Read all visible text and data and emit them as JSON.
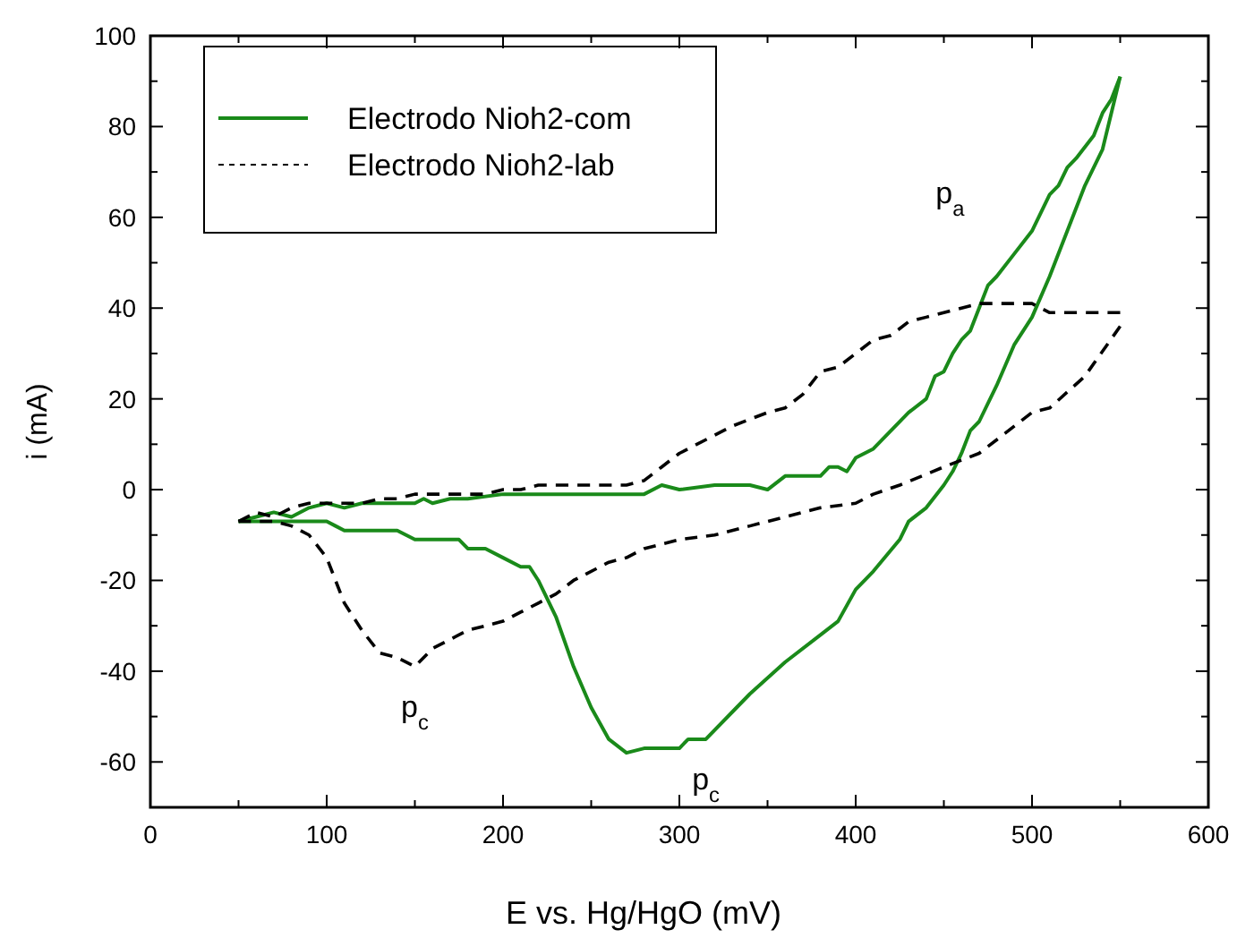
{
  "chart_data": {
    "type": "line",
    "xlabel": "E vs. Hg/HgO (mV)",
    "ylabel": "i (mA)",
    "xlim": [
      0,
      600
    ],
    "xticks": [
      0,
      100,
      200,
      300,
      400,
      500,
      600
    ],
    "ylim": [
      -70,
      100
    ],
    "yticks": [
      -60,
      -40,
      -20,
      0,
      20,
      40,
      60,
      80,
      100
    ],
    "legend": "top left",
    "grid": false,
    "series": [
      {
        "name": "Electrodo Nioh2-com",
        "color": "#1a8a1a",
        "line_style": "solid",
        "x": [
          50,
          60,
          70,
          80,
          90,
          100,
          110,
          120,
          150,
          155,
          160,
          170,
          180,
          200,
          220,
          250,
          280,
          290,
          300,
          320,
          340,
          350,
          360,
          380,
          385,
          390,
          395,
          400,
          410,
          420,
          430,
          440,
          445,
          450,
          455,
          460,
          465,
          470,
          475,
          480,
          490,
          500,
          510,
          515,
          520,
          525,
          535,
          540,
          545,
          550
        ],
        "values": [
          -7,
          -6,
          -5,
          -6,
          -4,
          -3,
          -4,
          -3,
          -3,
          -2,
          -3,
          -2,
          -2,
          -1,
          -1,
          -1,
          -1,
          1,
          0,
          1,
          1,
          0,
          3,
          3,
          5,
          5,
          4,
          7,
          9,
          13,
          17,
          20,
          25,
          26,
          30,
          33,
          35,
          40,
          45,
          47,
          52,
          57,
          65,
          67,
          71,
          73,
          78,
          83,
          86,
          91
        ]
      },
      {
        "color": "#1a8a1a",
        "line_style": "solid",
        "x": [
          50,
          60,
          70,
          80,
          100,
          105,
          110,
          140,
          150,
          175,
          180,
          190,
          200,
          210,
          215,
          220,
          230,
          240,
          250,
          260,
          270,
          280,
          300,
          305,
          315,
          330,
          340,
          360,
          380,
          390,
          400,
          410,
          425,
          430,
          440,
          450,
          455,
          460,
          465,
          470,
          480,
          490,
          500,
          510,
          520,
          530,
          540,
          550
        ],
        "values": [
          -7,
          -7,
          -7,
          -7,
          -7,
          -8,
          -9,
          -9,
          -11,
          -11,
          -13,
          -13,
          -15,
          -17,
          -17,
          -20,
          -28,
          -39,
          -48,
          -55,
          -58,
          -57,
          -57,
          -55,
          -55,
          -49,
          -45,
          -38,
          -32,
          -29,
          -22,
          -18,
          -11,
          -7,
          -4,
          1,
          4,
          8,
          13,
          15,
          23,
          32,
          38,
          47,
          57,
          67,
          75,
          91
        ]
      },
      {
        "name": "Electrodo Nioh2-lab",
        "color": "#000000",
        "line_style": "dashed",
        "x": [
          50,
          60,
          70,
          80,
          90,
          100,
          120,
          130,
          140,
          150,
          170,
          190,
          200,
          210,
          220,
          240,
          270,
          280,
          290,
          300,
          320,
          330,
          350,
          360,
          370,
          380,
          390,
          400,
          410,
          420,
          430,
          440,
          460,
          470,
          490,
          500,
          510,
          550
        ],
        "values": [
          -7,
          -5,
          -6,
          -4,
          -3,
          -3,
          -3,
          -2,
          -2,
          -1,
          -1,
          -1,
          0,
          0,
          1,
          1,
          1,
          2,
          5,
          8,
          12,
          14,
          17,
          18,
          21,
          26,
          27,
          30,
          33,
          34,
          37,
          38,
          40,
          41,
          41,
          41,
          39,
          39
        ]
      },
      {
        "color": "#000000",
        "line_style": "dashed",
        "x": [
          50,
          70,
          80,
          90,
          100,
          110,
          120,
          130,
          140,
          150,
          160,
          170,
          180,
          200,
          210,
          220,
          230,
          240,
          260,
          270,
          280,
          300,
          320,
          340,
          350,
          360,
          380,
          400,
          410,
          425,
          450,
          470,
          500,
          510,
          530,
          550
        ],
        "values": [
          -7,
          -7,
          -8,
          -10,
          -15,
          -25,
          -31,
          -36,
          -37,
          -39,
          -35,
          -33,
          -31,
          -29,
          -27,
          -25,
          -23,
          -20,
          -16,
          -15,
          -13,
          -11,
          -10,
          -8,
          -7,
          -6,
          -4,
          -3,
          -1,
          1,
          5,
          8,
          17,
          18,
          25,
          36
        ]
      }
    ],
    "annotations": [
      {
        "text": "p$_{a}$",
        "x": 490,
        "y": 52
      },
      {
        "text": "p$_{c}$",
        "x": 150,
        "y": -39
      },
      {
        "text": "p$_{c}$",
        "x": 315,
        "y": -55
      }
    ]
  }
}
